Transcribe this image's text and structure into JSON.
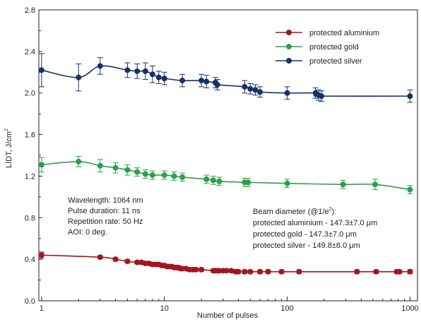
{
  "chart_data": {
    "type": "line",
    "x_scale": "log",
    "xlabel": "Number of pulses",
    "ylabel_main": "LIDT, J/cm",
    "ylabel_sup": "2",
    "xlim": [
      0.95,
      1150
    ],
    "ylim": [
      0,
      2.8
    ],
    "x_ticks": [
      {
        "value": 1,
        "label": "1"
      },
      {
        "value": 10,
        "label": "10"
      },
      {
        "value": 100,
        "label": "100"
      },
      {
        "value": 1000,
        "label": "1000"
      }
    ],
    "y_ticks": [
      {
        "value": 0.0,
        "label": "0.0"
      },
      {
        "value": 0.4,
        "label": "0.4"
      },
      {
        "value": 0.8,
        "label": "0.8"
      },
      {
        "value": 1.2,
        "label": "1.2"
      },
      {
        "value": 1.6,
        "label": "1.6"
      },
      {
        "value": 2.0,
        "label": "2.0"
      },
      {
        "value": 2.4,
        "label": "2.4"
      },
      {
        "value": 2.8,
        "label": "2.8"
      }
    ],
    "grid": false,
    "legend_position": "top-right",
    "series": [
      {
        "name": "protected aluminium",
        "color": "#a31621",
        "x": [
          1,
          3,
          4,
          5,
          6,
          6.5,
          7,
          7.5,
          8,
          8.5,
          9,
          9.5,
          10,
          10.5,
          11,
          11.5,
          12,
          12.5,
          13,
          13.5,
          14,
          15,
          16,
          17,
          18,
          20,
          25,
          26,
          27,
          28,
          30,
          32,
          35,
          38,
          40,
          45,
          50,
          60,
          70,
          90,
          125,
          370,
          530,
          780,
          820,
          1000
        ],
        "y": [
          0.44,
          0.42,
          0.4,
          0.38,
          0.37,
          0.37,
          0.36,
          0.36,
          0.35,
          0.35,
          0.35,
          0.34,
          0.34,
          0.33,
          0.33,
          0.33,
          0.32,
          0.32,
          0.32,
          0.31,
          0.31,
          0.31,
          0.3,
          0.3,
          0.3,
          0.3,
          0.29,
          0.29,
          0.29,
          0.29,
          0.29,
          0.29,
          0.29,
          0.28,
          0.28,
          0.28,
          0.28,
          0.28,
          0.28,
          0.28,
          0.28,
          0.28,
          0.28,
          0.28,
          0.28,
          0.28
        ],
        "err": [
          0.03,
          0.015,
          0.015,
          0.015,
          0.015,
          0.015,
          0.015,
          0.015,
          0.015,
          0.015,
          0.015,
          0.015,
          0.015,
          0.015,
          0.015,
          0.015,
          0.015,
          0.015,
          0.015,
          0.015,
          0.015,
          0.015,
          0.015,
          0.015,
          0.015,
          0.015,
          0.015,
          0.015,
          0.015,
          0.015,
          0.015,
          0.015,
          0.015,
          0.015,
          0.015,
          0.015,
          0.015,
          0.015,
          0.015,
          0.015,
          0.015,
          0.015,
          0.015,
          0.015,
          0.015,
          0.02
        ]
      },
      {
        "name": "protected gold",
        "color": "#2ca048",
        "x": [
          1,
          2,
          3,
          4,
          5,
          6,
          7,
          8,
          10,
          12,
          14,
          22,
          25,
          28,
          45,
          48,
          100,
          285,
          520,
          1000
        ],
        "y": [
          1.31,
          1.34,
          1.3,
          1.28,
          1.26,
          1.24,
          1.22,
          1.21,
          1.21,
          1.2,
          1.19,
          1.17,
          1.16,
          1.15,
          1.14,
          1.14,
          1.13,
          1.12,
          1.12,
          1.07
        ],
        "err": [
          0.07,
          0.05,
          0.06,
          0.05,
          0.05,
          0.04,
          0.04,
          0.04,
          0.04,
          0.04,
          0.04,
          0.04,
          0.04,
          0.04,
          0.04,
          0.04,
          0.04,
          0.04,
          0.05,
          0.04
        ]
      },
      {
        "name": "protected silver",
        "color": "#17306a",
        "x": [
          1,
          2,
          3,
          5,
          6,
          7,
          8,
          9,
          10,
          14,
          20,
          22,
          26,
          27,
          45,
          50,
          55,
          60,
          100,
          170,
          180,
          190,
          1000
        ],
        "y": [
          2.22,
          2.15,
          2.26,
          2.22,
          2.21,
          2.21,
          2.18,
          2.15,
          2.14,
          2.12,
          2.12,
          2.11,
          2.1,
          2.08,
          2.06,
          2.04,
          2.03,
          2.01,
          2.0,
          2.0,
          1.98,
          1.97,
          1.97
        ],
        "err": [
          0.16,
          0.13,
          0.08,
          0.07,
          0.07,
          0.08,
          0.08,
          0.06,
          0.06,
          0.06,
          0.06,
          0.06,
          0.05,
          0.05,
          0.06,
          0.05,
          0.05,
          0.05,
          0.06,
          0.05,
          0.05,
          0.05,
          0.06
        ]
      }
    ],
    "annotations_left": [
      "Wavelength: 1064 nm",
      "Pulse duration: 11 ns",
      "Repetition rate: 50 Hz",
      "AOI: 0 deg."
    ],
    "annotations_right": {
      "line1_prefix": "Beam diameter (@1/e",
      "line1_sup": "2",
      "line1_suffix": "):",
      "lines": [
        "protected aluminium - 147.3±7.0 μm",
        "protected gold - 147.3±7.0 μm",
        "protected silver - 149.8±8.0 μm"
      ]
    }
  }
}
